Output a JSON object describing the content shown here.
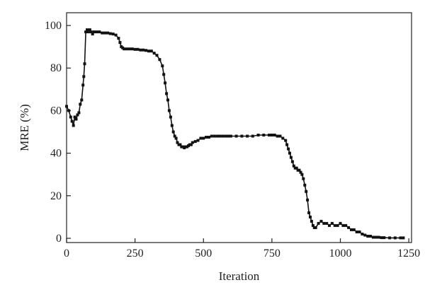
{
  "chart_data": {
    "type": "line",
    "xlabel": "Iteration",
    "ylabel": "MRE (%)",
    "xlim": [
      0,
      1260
    ],
    "ylim": [
      -2,
      106
    ],
    "xticks": [
      0,
      250,
      500,
      750,
      1000,
      1250
    ],
    "yticks": [
      0,
      20,
      40,
      60,
      80,
      100
    ],
    "grid": false,
    "marker": "square",
    "line_color": "#111111",
    "series": [
      {
        "x": [
          0,
          8,
          15,
          20,
          25,
          30,
          35,
          40,
          45,
          50,
          55,
          60,
          63,
          66,
          70,
          75,
          80,
          85,
          90,
          95,
          100,
          110,
          120,
          130,
          140,
          150,
          160,
          170,
          180,
          190,
          195,
          200,
          205,
          210,
          220,
          230,
          240,
          250,
          260,
          270,
          280,
          290,
          300,
          310,
          320,
          330,
          340,
          350,
          355,
          360,
          365,
          370,
          375,
          380,
          385,
          390,
          395,
          400,
          405,
          410,
          415,
          420,
          425,
          430,
          435,
          440,
          445,
          450,
          455,
          460,
          470,
          480,
          490,
          500,
          510,
          520,
          530,
          540,
          550,
          560,
          570,
          580,
          590,
          600,
          620,
          640,
          660,
          680,
          700,
          720,
          740,
          750,
          760,
          770,
          780,
          790,
          800,
          805,
          810,
          815,
          820,
          825,
          830,
          835,
          840,
          845,
          850,
          855,
          860,
          865,
          870,
          875,
          880,
          885,
          890,
          895,
          900,
          905,
          910,
          920,
          930,
          940,
          950,
          960,
          970,
          980,
          990,
          1000,
          1010,
          1020,
          1030,
          1040,
          1050,
          1060,
          1070,
          1080,
          1090,
          1100,
          1110,
          1120,
          1130,
          1140,
          1150,
          1160,
          1180,
          1200,
          1220,
          1230
        ],
        "y": [
          62,
          60,
          57,
          55,
          53,
          57,
          56,
          58,
          59,
          63,
          65,
          72,
          76,
          82,
          97,
          98,
          97,
          98,
          97,
          96,
          97,
          97,
          97,
          96.5,
          96.5,
          96.5,
          96.2,
          96,
          95.5,
          94,
          92,
          90,
          89.5,
          89,
          89,
          89,
          89,
          88.8,
          88.8,
          88.5,
          88.5,
          88.3,
          88,
          88,
          87,
          86,
          84,
          81,
          77,
          73,
          68,
          65,
          60,
          57,
          53,
          50,
          48,
          47,
          45,
          44,
          44,
          43,
          43,
          42.5,
          43,
          43,
          43.5,
          44,
          44,
          45,
          45.5,
          46,
          47,
          47,
          47.5,
          47.5,
          48,
          48,
          48,
          48,
          48,
          48,
          48,
          48,
          48,
          48,
          48,
          48,
          48.5,
          48.5,
          48.5,
          48.5,
          48.5,
          48,
          48,
          47,
          46,
          44,
          42,
          40,
          38,
          36,
          34,
          33,
          33,
          32,
          32,
          31,
          30,
          28,
          25,
          22,
          18,
          12,
          10,
          8,
          6,
          5,
          5,
          7,
          8,
          7,
          7,
          6,
          7,
          6,
          6,
          7,
          6,
          6,
          5,
          4,
          4,
          3,
          3,
          2,
          1.5,
          1,
          1,
          0.5,
          0.5,
          0.5,
          0.3,
          0.3,
          0.2,
          0.2,
          0.2,
          0.2
        ]
      }
    ]
  }
}
